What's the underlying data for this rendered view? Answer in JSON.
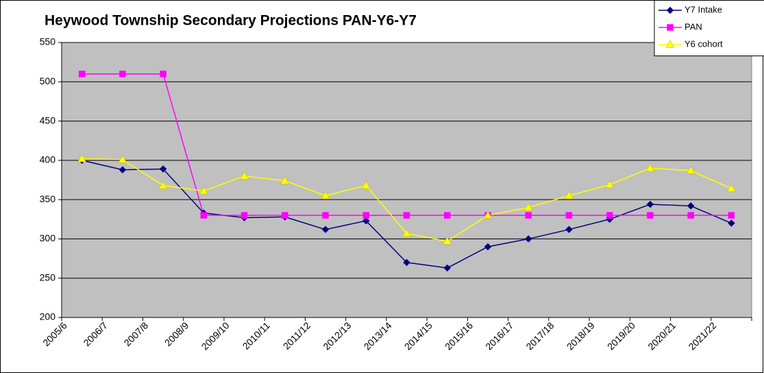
{
  "chart_data": {
    "type": "line",
    "title": "Heywood Township Secondary Projections PAN-Y6-Y7",
    "categories": [
      "2005/6",
      "2006/7",
      "2007/8",
      "2008/9",
      "2009/10",
      "2010/11",
      "2011/12",
      "2012/13",
      "2013/14",
      "2014/15",
      "2015/16",
      "2016/17",
      "2017/18",
      "2018/19",
      "2019/20",
      "2020/21",
      "2021/22"
    ],
    "series": [
      {
        "name": "Y7 Intake",
        "color": "#000080",
        "marker": "diamond",
        "values": [
          400,
          388,
          389,
          333,
          327,
          328,
          312,
          323,
          270,
          263,
          290,
          300,
          312,
          325,
          344,
          342,
          320
        ]
      },
      {
        "name": "PAN",
        "color": "#ff00ff",
        "marker": "square",
        "values": [
          510,
          510,
          510,
          330,
          330,
          330,
          330,
          330,
          330,
          330,
          330,
          330,
          330,
          330,
          330,
          330,
          330
        ]
      },
      {
        "name": "Y6 cohort",
        "color": "#ffff00",
        "marker": "triangle",
        "values": [
          402,
          401,
          368,
          361,
          380,
          374,
          355,
          368,
          307,
          297,
          330,
          340,
          355,
          369,
          390,
          387,
          364
        ]
      }
    ],
    "ylim": [
      200,
      550
    ],
    "yticks": [
      200,
      250,
      300,
      350,
      400,
      450,
      500,
      550
    ],
    "grid": true,
    "legend": "top-right",
    "plot_background": "#c0c0c0"
  }
}
